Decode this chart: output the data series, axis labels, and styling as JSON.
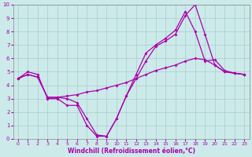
{
  "xlabel": "Windchill (Refroidissement éolien,°C)",
  "xlim": [
    -0.5,
    23.5
  ],
  "ylim": [
    0,
    10
  ],
  "xticks": [
    0,
    1,
    2,
    3,
    4,
    5,
    6,
    7,
    8,
    9,
    10,
    11,
    12,
    13,
    14,
    15,
    16,
    17,
    18,
    19,
    20,
    21,
    22,
    23
  ],
  "yticks": [
    0,
    1,
    2,
    3,
    4,
    5,
    6,
    7,
    8,
    9,
    10
  ],
  "bg_color": "#cceaea",
  "line_color": "#aa00aa",
  "grid_color": "#aacccc",
  "line1_x": [
    0,
    1,
    2,
    3,
    4,
    5,
    6,
    7,
    8,
    9,
    10,
    11,
    12,
    13,
    14,
    15,
    16,
    17,
    18,
    19,
    20,
    21,
    22,
    23
  ],
  "line1_y": [
    4.5,
    5.0,
    4.8,
    3.0,
    3.0,
    2.5,
    2.5,
    1.0,
    0.2,
    0.2,
    1.5,
    3.2,
    4.8,
    6.4,
    7.0,
    7.5,
    8.1,
    9.5,
    8.0,
    5.8,
    5.9,
    5.1,
    4.9,
    4.8
  ],
  "line2_x": [
    0,
    1,
    2,
    3,
    4,
    5,
    6,
    7,
    8,
    9,
    10,
    11,
    12,
    13,
    14,
    15,
    16,
    17,
    18,
    19,
    20,
    21,
    22,
    23
  ],
  "line2_y": [
    4.5,
    4.8,
    4.6,
    3.1,
    3.1,
    3.2,
    3.3,
    3.5,
    3.6,
    3.8,
    4.0,
    4.2,
    4.5,
    4.8,
    5.1,
    5.3,
    5.5,
    5.8,
    6.0,
    5.9,
    5.5,
    5.0,
    4.9,
    4.8
  ],
  "line3_x": [
    0,
    1,
    2,
    3,
    4,
    5,
    6,
    7,
    8,
    9,
    10,
    11,
    12,
    13,
    14,
    15,
    16,
    17,
    18,
    19,
    20,
    21,
    22,
    23
  ],
  "line3_y": [
    4.5,
    4.8,
    4.6,
    3.1,
    3.1,
    3.0,
    2.7,
    1.5,
    0.3,
    0.2,
    1.5,
    3.2,
    4.5,
    5.8,
    6.9,
    7.3,
    7.8,
    9.2,
    10.0,
    7.8,
    5.5,
    5.0,
    4.9,
    4.8
  ],
  "marker": "D",
  "markersize": 2.0,
  "linewidth": 0.9
}
